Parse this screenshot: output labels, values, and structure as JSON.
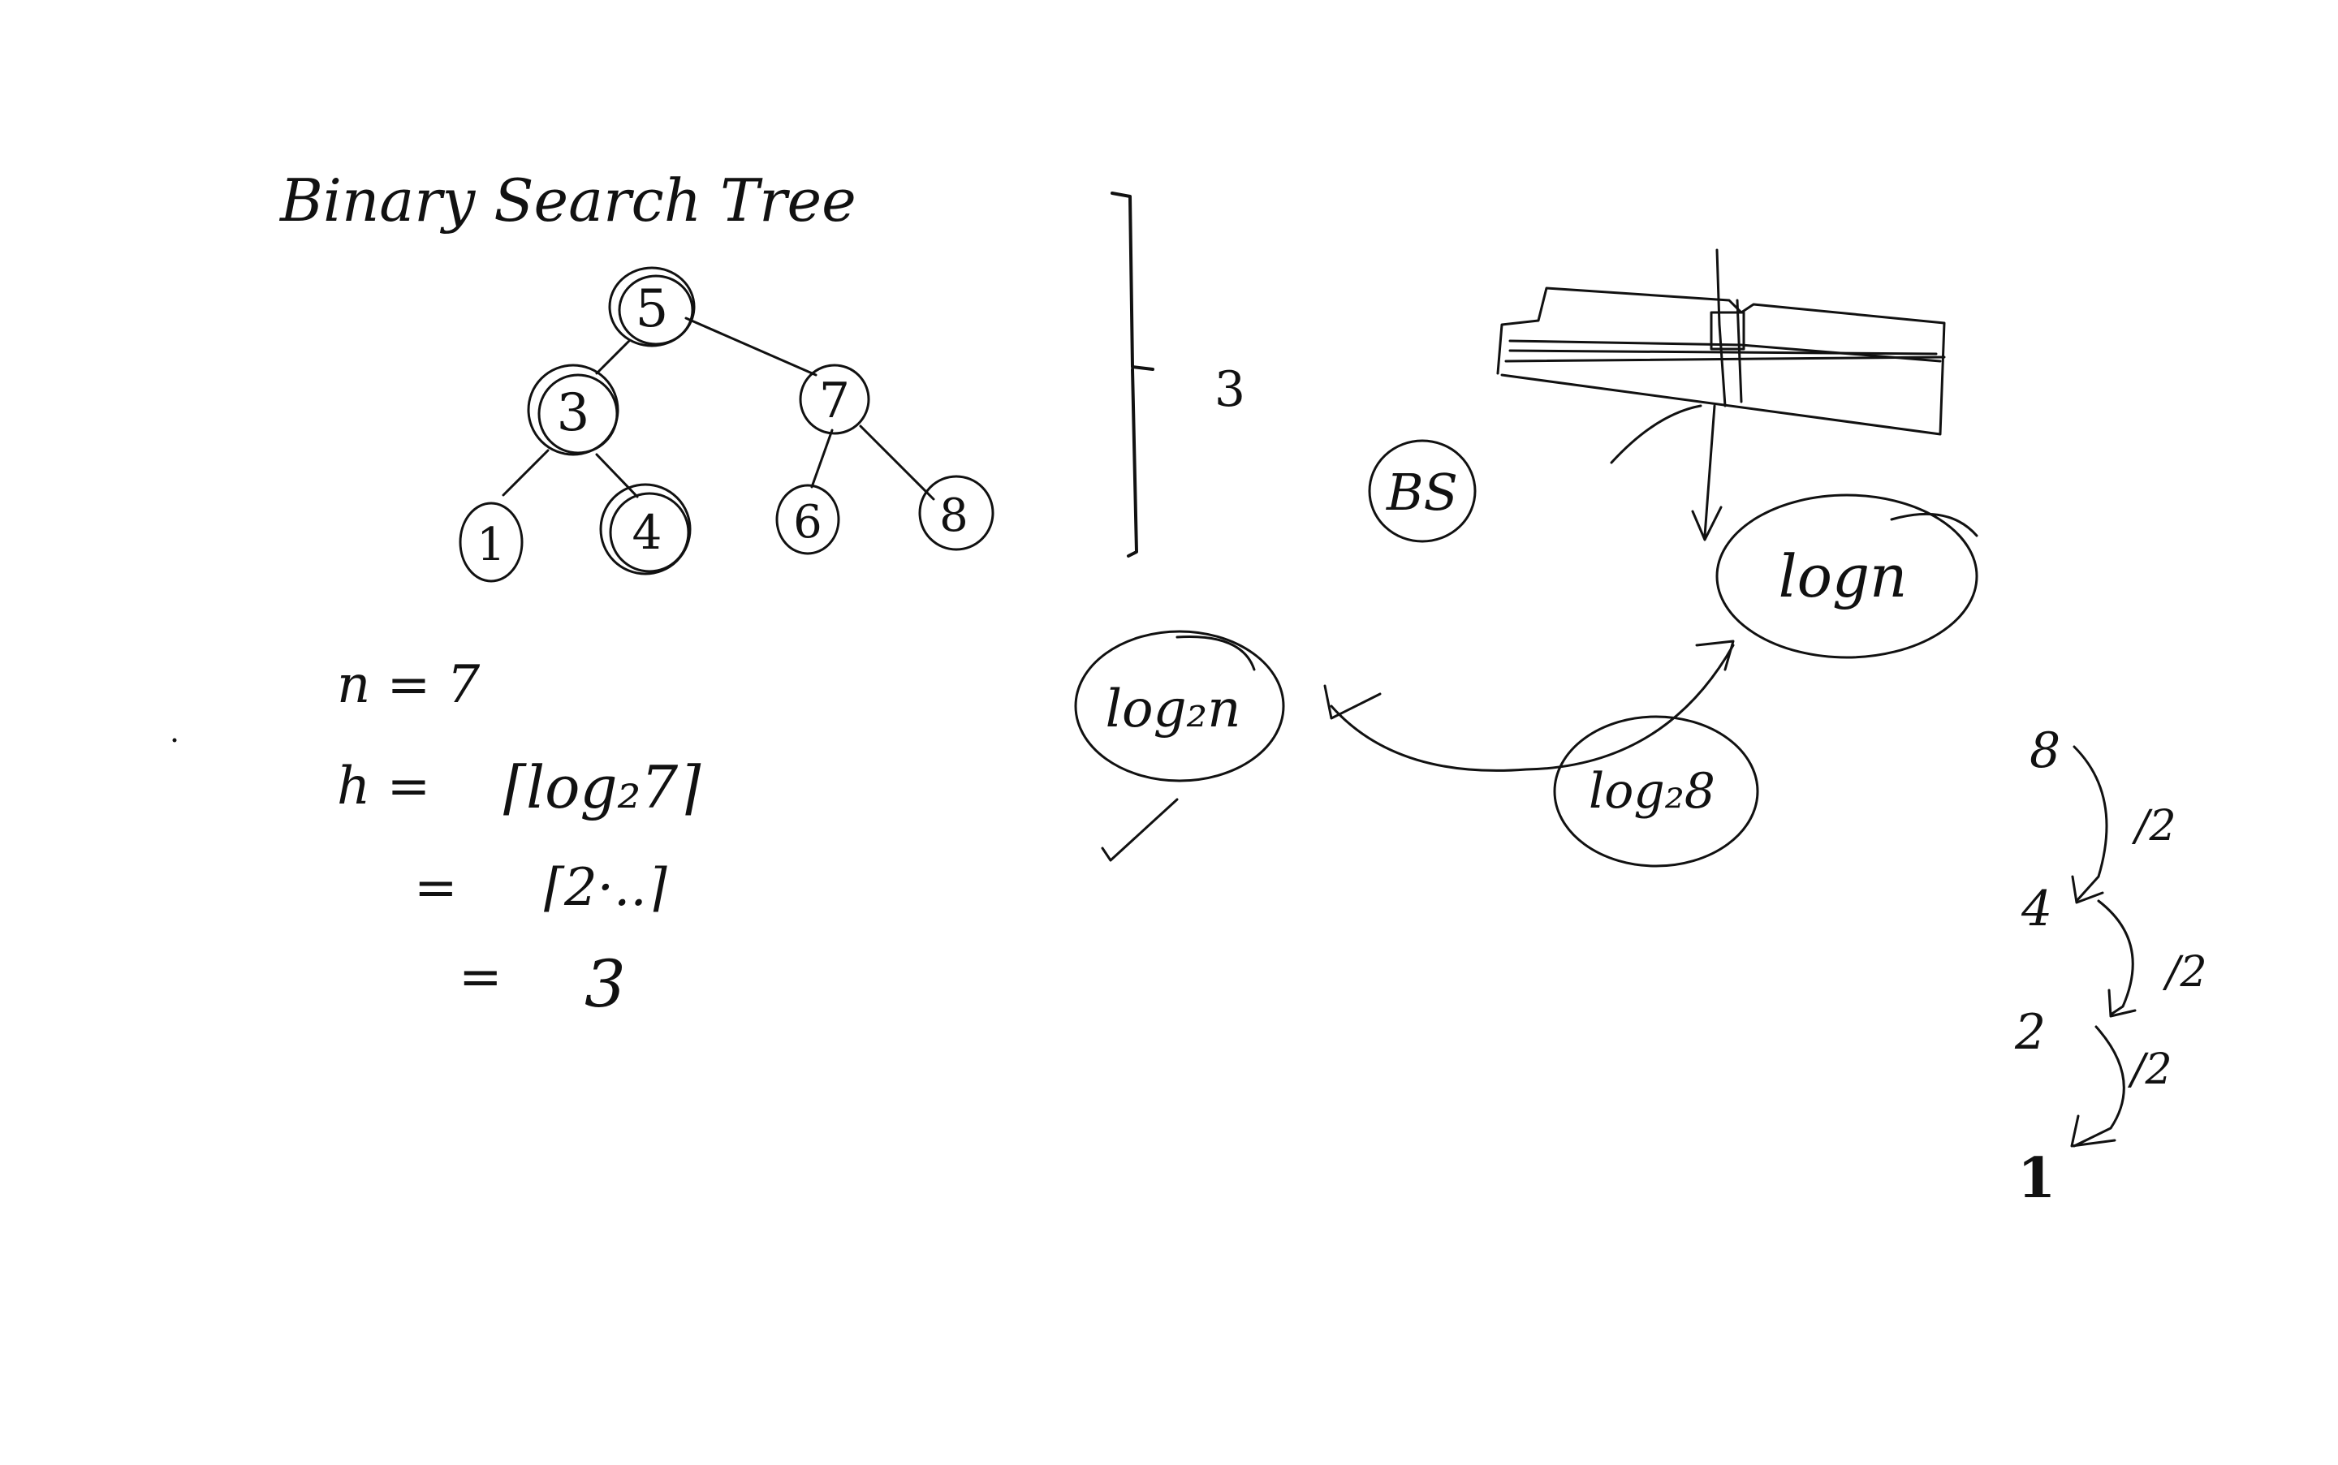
{
  "title": "Binary Search Tree",
  "tree": {
    "root": "5",
    "left": "3",
    "right": "7",
    "leaves": [
      "1",
      "4",
      "6",
      "8"
    ]
  },
  "height_bracket_label": "3",
  "bs_label": "BS",
  "calc": {
    "n_line": "n = 7",
    "h_label": "h =",
    "h_expr": "⌈log₂7⌉",
    "eq1": "=",
    "step_value": "⌈2·..⌉",
    "eq2": "=",
    "result": "3"
  },
  "log_mid": "log₂n",
  "log_right": "logn",
  "log_8": "log₂8",
  "halving": {
    "values": [
      "8",
      "4",
      "2",
      "1"
    ],
    "step_labels": [
      "/2",
      "/2",
      "/2"
    ]
  }
}
